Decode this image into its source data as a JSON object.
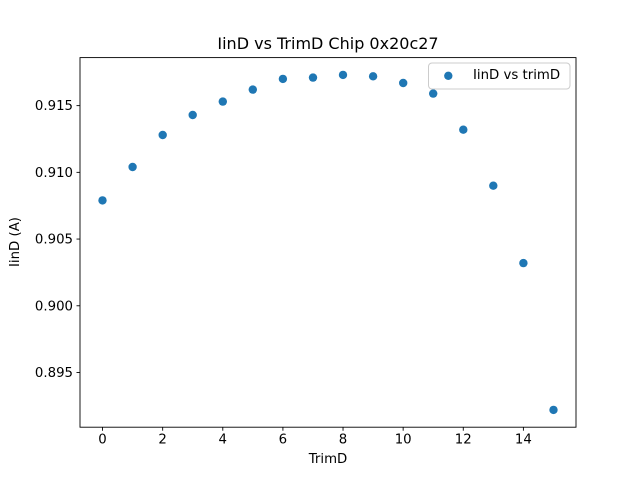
{
  "figure": {
    "background": "#ffffff",
    "text_color": "#000000"
  },
  "chart_data": {
    "type": "scatter",
    "title": "IinD vs TrimD Chip 0x20c27",
    "xlabel": "TrimD",
    "ylabel": "IinD (A)",
    "legend": [
      {
        "label": "IinD vs trimD",
        "marker": "circle",
        "color": "#1f77b4"
      }
    ],
    "legend_position": "upper right",
    "marker_color": "#1f77b4",
    "legend_border_color": "#cccccc",
    "spine_color": "#000000",
    "grid": false,
    "x": [
      0,
      1,
      2,
      3,
      4,
      5,
      6,
      7,
      8,
      9,
      10,
      11,
      12,
      13,
      14,
      15
    ],
    "y": [
      0.9079,
      0.9104,
      0.9128,
      0.9143,
      0.9153,
      0.9162,
      0.917,
      0.9171,
      0.9173,
      0.9172,
      0.9167,
      0.9159,
      0.9132,
      0.909,
      0.9032,
      0.8922
    ],
    "xlim": [
      -0.75,
      15.75
    ],
    "ylim": [
      0.8909,
      0.9186
    ],
    "xticks": [
      0,
      2,
      4,
      6,
      8,
      10,
      12,
      14
    ],
    "xticklabels": [
      "0",
      "2",
      "4",
      "6",
      "8",
      "10",
      "12",
      "14"
    ],
    "yticks": [
      0.895,
      0.9,
      0.905,
      0.91,
      0.915
    ],
    "yticklabels": [
      "0.895",
      "0.900",
      "0.905",
      "0.910",
      "0.915"
    ]
  }
}
